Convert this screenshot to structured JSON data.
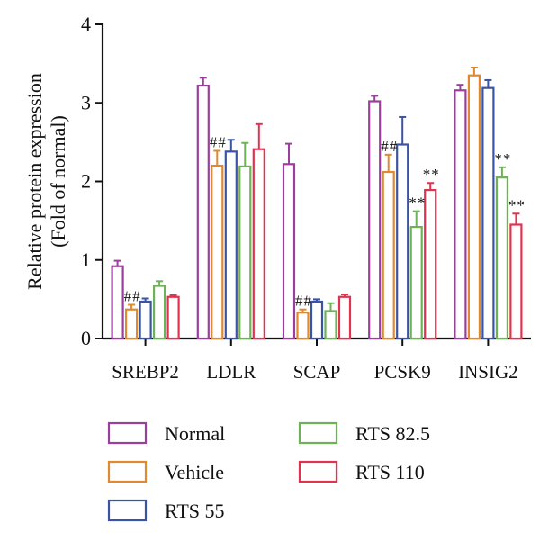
{
  "chart_data": {
    "type": "bar",
    "ylabel": [
      "Relative protein expression",
      "(Fold of normal)"
    ],
    "ylim": [
      0,
      4
    ],
    "yticks": [
      "0",
      "1",
      "2",
      "3",
      "4"
    ],
    "categories": [
      "SREBP2",
      "LDLR",
      "SCAP",
      "PCSK9",
      "INSIG2"
    ],
    "series": [
      {
        "name": "Normal",
        "color": "#9b3f9e",
        "values": [
          0.92,
          3.22,
          2.22,
          3.02,
          3.16
        ],
        "errors": [
          0.07,
          0.1,
          0.26,
          0.07,
          0.07
        ]
      },
      {
        "name": "Vehicle",
        "color": "#e0892e",
        "values": [
          0.37,
          2.2,
          0.33,
          2.12,
          3.35
        ],
        "errors": [
          0.06,
          0.19,
          0.04,
          0.22,
          0.1
        ]
      },
      {
        "name": "RTS 55",
        "color": "#3b53a4",
        "values": [
          0.47,
          2.38,
          0.47,
          2.47,
          3.19
        ],
        "errors": [
          0.04,
          0.15,
          0.03,
          0.35,
          0.1
        ]
      },
      {
        "name": "RTS 82.5",
        "color": "#6cb257",
        "values": [
          0.67,
          2.19,
          0.35,
          1.42,
          2.05
        ],
        "errors": [
          0.06,
          0.3,
          0.1,
          0.2,
          0.13
        ]
      },
      {
        "name": "RTS 110",
        "color": "#e0334f",
        "values": [
          0.53,
          2.41,
          0.53,
          1.89,
          1.45
        ],
        "errors": [
          0.02,
          0.32,
          0.03,
          0.09,
          0.14
        ]
      }
    ],
    "annotations": [
      {
        "category": 0,
        "series": 1,
        "text": "##"
      },
      {
        "category": 1,
        "series": 1,
        "text": "##"
      },
      {
        "category": 2,
        "series": 1,
        "text": "##"
      },
      {
        "category": 3,
        "series": 1,
        "text": "##"
      },
      {
        "category": 3,
        "series": 3,
        "text": "**"
      },
      {
        "category": 3,
        "series": 4,
        "text": "**"
      },
      {
        "category": 4,
        "series": 3,
        "text": "**"
      },
      {
        "category": 4,
        "series": 4,
        "text": "**"
      }
    ],
    "grid": false,
    "legend_position": "bottom"
  }
}
